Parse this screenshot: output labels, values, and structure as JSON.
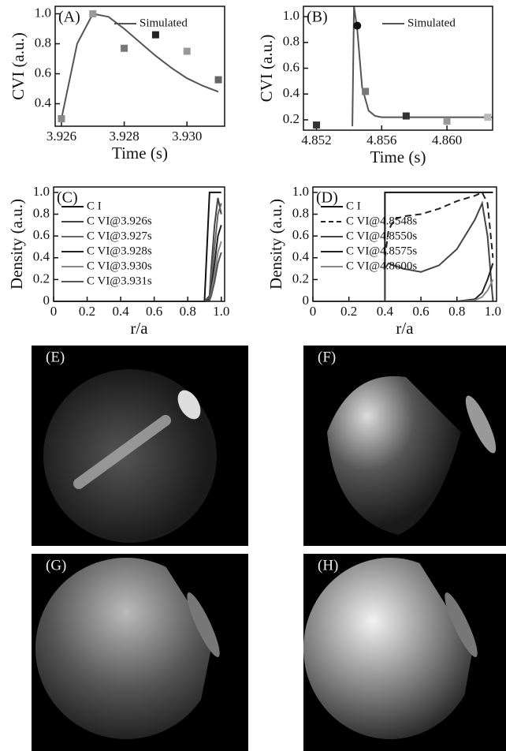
{
  "chart_data": [
    {
      "type": "line",
      "panel_label": "(A)",
      "x_label": "Time (s)",
      "y_label": "CVI (a.u.)",
      "xlim": [
        3.9258,
        3.9312
      ],
      "xticks": [
        3.926,
        3.928,
        {
          "value": 3.93,
          "label": "3.930"
        }
      ],
      "ylim": [
        0.25,
        1.05
      ],
      "yticks": [
        0.4,
        0.6,
        0.8,
        {
          "value": 1,
          "label": "1.0"
        }
      ],
      "legend": "top-right",
      "series": [
        {
          "name": "Simulated",
          "color": "#555555",
          "x": [
            3.926,
            3.9265,
            3.927,
            3.9275,
            3.928,
            3.9285,
            3.929,
            3.9295,
            3.93,
            3.9305,
            3.931
          ],
          "values": [
            0.3,
            0.8,
            1.0,
            0.98,
            0.9,
            0.81,
            0.72,
            0.64,
            0.57,
            0.52,
            0.48
          ]
        }
      ],
      "points": {
        "x": [
          3.926,
          3.927,
          3.928,
          3.929,
          3.93,
          3.931
        ],
        "values": [
          0.3,
          1.0,
          0.77,
          0.86,
          0.75,
          0.56
        ],
        "colors": [
          "#888888",
          "#999999",
          "#777777",
          "#222222",
          "#999999",
          "#666666"
        ],
        "markers": [
          "square",
          "square",
          "square",
          "square",
          "square",
          "square"
        ]
      }
    },
    {
      "type": "line",
      "panel_label": "(B)",
      "x_label": "Time (s)",
      "y_label": "CVI (a.u.)",
      "xlim": [
        4.8512,
        4.8628
      ],
      "xticks": [
        4.852,
        4.856,
        {
          "value": 4.86,
          "label": "4.860"
        }
      ],
      "ylim": [
        0.12,
        1.08
      ],
      "yticks": [
        0.2,
        0.4,
        0.6,
        0.8,
        {
          "value": 1,
          "label": "1.0"
        }
      ],
      "legend": "top-right",
      "series": [
        {
          "name": "Simulated",
          "color": "#555555",
          "x": [
            4.8542,
            4.8543,
            4.8545,
            4.8548,
            4.8552,
            4.8556,
            4.856,
            4.8628
          ],
          "values": [
            0.15,
            1.08,
            0.9,
            0.45,
            0.27,
            0.23,
            0.22,
            0.22
          ]
        }
      ],
      "points": {
        "x": [
          4.852,
          4.8545,
          4.855,
          4.8575,
          4.86,
          4.8625
        ],
        "values": [
          0.16,
          0.93,
          0.42,
          0.23,
          0.19,
          0.22
        ],
        "colors": [
          "#333333",
          "#111111",
          "#777777",
          "#333333",
          "#999999",
          "#bbbbbb"
        ],
        "markers": [
          "square",
          "circle",
          "square",
          "square",
          "square",
          "square"
        ]
      }
    },
    {
      "type": "line",
      "panel_label": "(C)",
      "x_label": "r/a",
      "y_label": "Density (a.u.)",
      "xlim": [
        0,
        1.02
      ],
      "xticks": [
        0,
        0.2,
        0.4,
        0.6,
        0.8,
        {
          "value": 1,
          "label": "1.0"
        }
      ],
      "ylim": [
        0,
        1.05
      ],
      "yticks": [
        0,
        0.2,
        0.4,
        0.6,
        0.8,
        {
          "value": 1,
          "label": "1.0"
        }
      ],
      "legend": "top-left",
      "x": [
        0,
        0.9,
        0.93,
        0.94,
        0.96,
        0.98,
        1.0
      ],
      "series": [
        {
          "name": "C I",
          "color": "#111111",
          "values": [
            0,
            0,
            1,
            1,
            1,
            1,
            1
          ]
        },
        {
          "name": "C VI@3.926s",
          "color": "#444444",
          "values": [
            0,
            0,
            0.05,
            0.3,
            0.7,
            0.95,
            0.8
          ]
        },
        {
          "name": "C VI@3.927s",
          "color": "#666666",
          "values": [
            0,
            0,
            0.03,
            0.2,
            0.5,
            0.8,
            0.9
          ]
        },
        {
          "name": "C VI@3.928s",
          "color": "#222222",
          "values": [
            0,
            0,
            0.02,
            0.12,
            0.35,
            0.6,
            0.7
          ]
        },
        {
          "name": "C VI@3.930s",
          "color": "#888888",
          "values": [
            0,
            0,
            0.01,
            0.08,
            0.25,
            0.45,
            0.55
          ]
        },
        {
          "name": "C VI@3.931s",
          "color": "#555555",
          "values": [
            0,
            0,
            0.01,
            0.05,
            0.18,
            0.35,
            0.45
          ]
        }
      ]
    },
    {
      "type": "line",
      "panel_label": "(D)",
      "x_label": "r/a",
      "y_label": "Density (a.u.)",
      "xlim": [
        0,
        1.02
      ],
      "xticks": [
        0,
        0.2,
        0.4,
        0.6,
        0.8,
        {
          "value": 1,
          "label": "1.0"
        }
      ],
      "ylim": [
        0,
        1.05
      ],
      "yticks": [
        0,
        0.2,
        0.4,
        0.6,
        0.8,
        {
          "value": 1,
          "label": "1.0"
        }
      ],
      "legend": "top-left",
      "x": [
        0,
        0.4,
        0.4,
        0.42,
        0.45,
        0.5,
        0.6,
        0.7,
        0.8,
        0.9,
        0.94,
        0.97,
        1.0
      ],
      "series": [
        {
          "name": "C I",
          "color": "#111111",
          "values": [
            0,
            0,
            1,
            1,
            1,
            1,
            1,
            1,
            1,
            1,
            1,
            1,
            1
          ]
        },
        {
          "name": "C VI@4.8548s",
          "color": "#222222",
          "dash": true,
          "values": [
            null,
            null,
            0.4,
            0.65,
            0.75,
            0.78,
            0.8,
            0.85,
            0.92,
            0.97,
            1.0,
            0.9,
            0.4
          ]
        },
        {
          "name": "C VI@4.8550s",
          "color": "#444444",
          "values": [
            0,
            0,
            0.3,
            0.35,
            0.33,
            0.3,
            0.27,
            0.33,
            0.48,
            0.75,
            0.9,
            0.6,
            0
          ]
        },
        {
          "name": "C VI@4.8575s",
          "color": "#222222",
          "values": [
            0,
            0,
            0,
            0,
            0,
            0,
            0,
            0,
            0,
            0.02,
            0.08,
            0.2,
            0.35
          ]
        },
        {
          "name": "C VI@4.8600s",
          "color": "#888888",
          "values": [
            0,
            0,
            0,
            0,
            0,
            0,
            0,
            0,
            0,
            0.01,
            0.04,
            0.1,
            0.2
          ]
        }
      ]
    }
  ],
  "images": [
    {
      "label": "(E)"
    },
    {
      "label": "(F)"
    },
    {
      "label": "(G)"
    },
    {
      "label": "(H)"
    }
  ]
}
